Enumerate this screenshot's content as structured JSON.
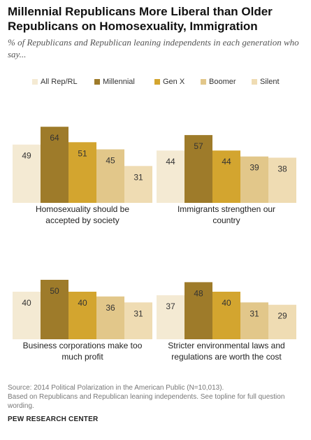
{
  "title": "Millennial Republicans More Liberal than Older Republicans on Homosexuality, Immigration",
  "subtitle": "% of Republicans and Republican leaning independents in each generation who say...",
  "legend": [
    {
      "name": "All Rep/RL",
      "color": "#f4ead3"
    },
    {
      "name": "Millennial",
      "color": "#9e7b2a"
    },
    {
      "name": "Gen X",
      "color": "#d3a52f"
    },
    {
      "name": "Boomer",
      "color": "#e2c78a"
    },
    {
      "name": "Silent",
      "color": "#efdcb3"
    }
  ],
  "chart_data": [
    {
      "type": "bar",
      "title": "Homosexuality should be accepted by society",
      "categories": [
        "All Rep/RL",
        "Millennial",
        "Gen X",
        "Boomer",
        "Silent"
      ],
      "values": [
        49,
        64,
        51,
        45,
        31
      ],
      "ylim": [
        0,
        70
      ]
    },
    {
      "type": "bar",
      "title": "Immigrants strengthen our country",
      "categories": [
        "All Rep/RL",
        "Millennial",
        "Gen X",
        "Boomer",
        "Silent"
      ],
      "values": [
        44,
        57,
        44,
        39,
        38
      ],
      "ylim": [
        0,
        70
      ]
    },
    {
      "type": "bar",
      "title": "Business corporations make too much profit",
      "categories": [
        "All Rep/RL",
        "Millennial",
        "Gen X",
        "Boomer",
        "Silent"
      ],
      "values": [
        40,
        50,
        40,
        36,
        31
      ],
      "ylim": [
        0,
        70
      ]
    },
    {
      "type": "bar",
      "title": "Stricter environmental laws and regulations are worth the cost",
      "categories": [
        "All Rep/RL",
        "Millennial",
        "Gen X",
        "Boomer",
        "Silent"
      ],
      "values": [
        37,
        48,
        40,
        31,
        29
      ],
      "ylim": [
        0,
        70
      ]
    }
  ],
  "source": {
    "line1": "Source: 2014 Political Polarization in the American Public (N=10,013).",
    "line2": "Based on Republicans and Republican leaning independents. See topline for full question wording."
  },
  "org": "PEW RESEARCH CENTER"
}
